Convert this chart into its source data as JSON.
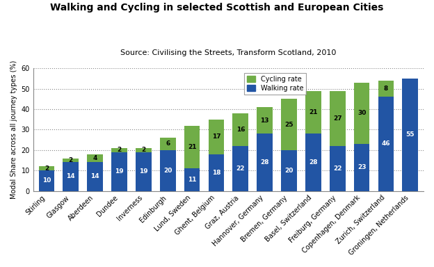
{
  "title": "Walking and Cycling in selected Scottish and European Cities",
  "subtitle": "Source: Civilising the Streets, Transform Scotland, 2010",
  "ylabel": "Modal Share across all journey types (%)",
  "categories": [
    "Stirling",
    "Glasgow",
    "Aberdeen",
    "Dundee",
    "Inverness",
    "Edinburgh",
    "Lund, Sweden",
    "Ghent, Belgium",
    "Graz, Austria",
    "Hannover, Germany",
    "Bremen, Germany",
    "Basel, Switzerland",
    "Freiburg, Germany",
    "Copenhagen, Denmark",
    "Zurich, Switzerland",
    "Groningen, Netherlands"
  ],
  "walking": [
    10,
    14,
    14,
    19,
    19,
    20,
    11,
    18,
    22,
    28,
    20,
    28,
    22,
    23,
    46,
    55
  ],
  "cycling": [
    2,
    2,
    4,
    2,
    2,
    6,
    21,
    17,
    16,
    13,
    25,
    21,
    27,
    30,
    8,
    0
  ],
  "walking_color": "#2255A4",
  "cycling_color": "#70AD47",
  "ylim": [
    0,
    60
  ],
  "yticks": [
    0,
    10,
    20,
    30,
    40,
    50,
    60
  ],
  "background_color": "#FFFFFF",
  "legend_cycling": "Cycling rate",
  "legend_walking": "Walking rate",
  "title_fontsize": 10,
  "subtitle_fontsize": 8,
  "label_fontsize": 7,
  "tick_fontsize": 7,
  "bar_label_fontsize": 6.5
}
